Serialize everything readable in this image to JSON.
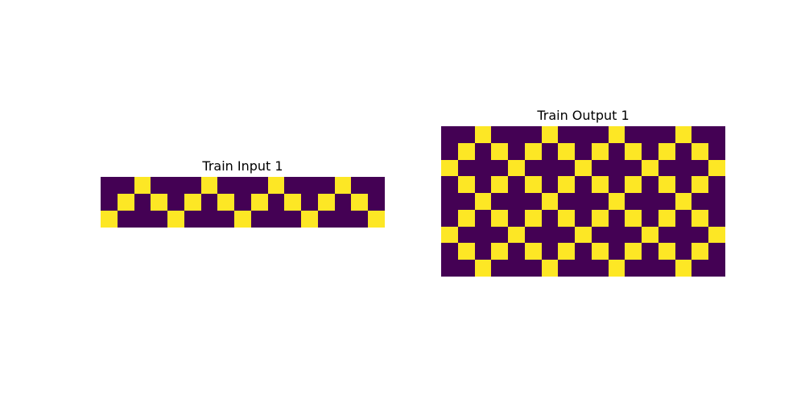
{
  "colors": {
    "0": "#440154",
    "1": "#fde725"
  },
  "panels": {
    "input": {
      "title": "Train Input 1",
      "grid": [
        [
          0,
          0,
          1,
          0,
          0,
          0,
          1,
          0,
          0,
          0,
          1,
          0,
          0,
          0,
          1,
          0,
          0
        ],
        [
          0,
          1,
          0,
          1,
          0,
          1,
          0,
          1,
          0,
          1,
          0,
          1,
          0,
          1,
          0,
          1,
          0
        ],
        [
          1,
          0,
          0,
          0,
          1,
          0,
          0,
          0,
          1,
          0,
          0,
          0,
          1,
          0,
          0,
          0,
          1
        ]
      ]
    },
    "output": {
      "title": "Train Output 1",
      "grid": [
        [
          0,
          0,
          1,
          0,
          0,
          0,
          1,
          0,
          0,
          0,
          1,
          0,
          0,
          0,
          1,
          0,
          0
        ],
        [
          0,
          1,
          0,
          1,
          0,
          1,
          0,
          1,
          0,
          1,
          0,
          1,
          0,
          1,
          0,
          1,
          0
        ],
        [
          1,
          0,
          0,
          0,
          1,
          0,
          0,
          0,
          1,
          0,
          0,
          0,
          1,
          0,
          0,
          0,
          1
        ],
        [
          0,
          1,
          0,
          1,
          0,
          1,
          0,
          1,
          0,
          1,
          0,
          1,
          0,
          1,
          0,
          1,
          0
        ],
        [
          0,
          0,
          1,
          0,
          0,
          0,
          1,
          0,
          0,
          0,
          1,
          0,
          0,
          0,
          1,
          0,
          0
        ],
        [
          0,
          1,
          0,
          1,
          0,
          1,
          0,
          1,
          0,
          1,
          0,
          1,
          0,
          1,
          0,
          1,
          0
        ],
        [
          1,
          0,
          0,
          0,
          1,
          0,
          0,
          0,
          1,
          0,
          0,
          0,
          1,
          0,
          0,
          0,
          1
        ],
        [
          0,
          1,
          0,
          1,
          0,
          1,
          0,
          1,
          0,
          1,
          0,
          1,
          0,
          1,
          0,
          1,
          0
        ],
        [
          0,
          0,
          1,
          0,
          0,
          0,
          1,
          0,
          0,
          0,
          1,
          0,
          0,
          0,
          1,
          0,
          0
        ]
      ]
    }
  }
}
